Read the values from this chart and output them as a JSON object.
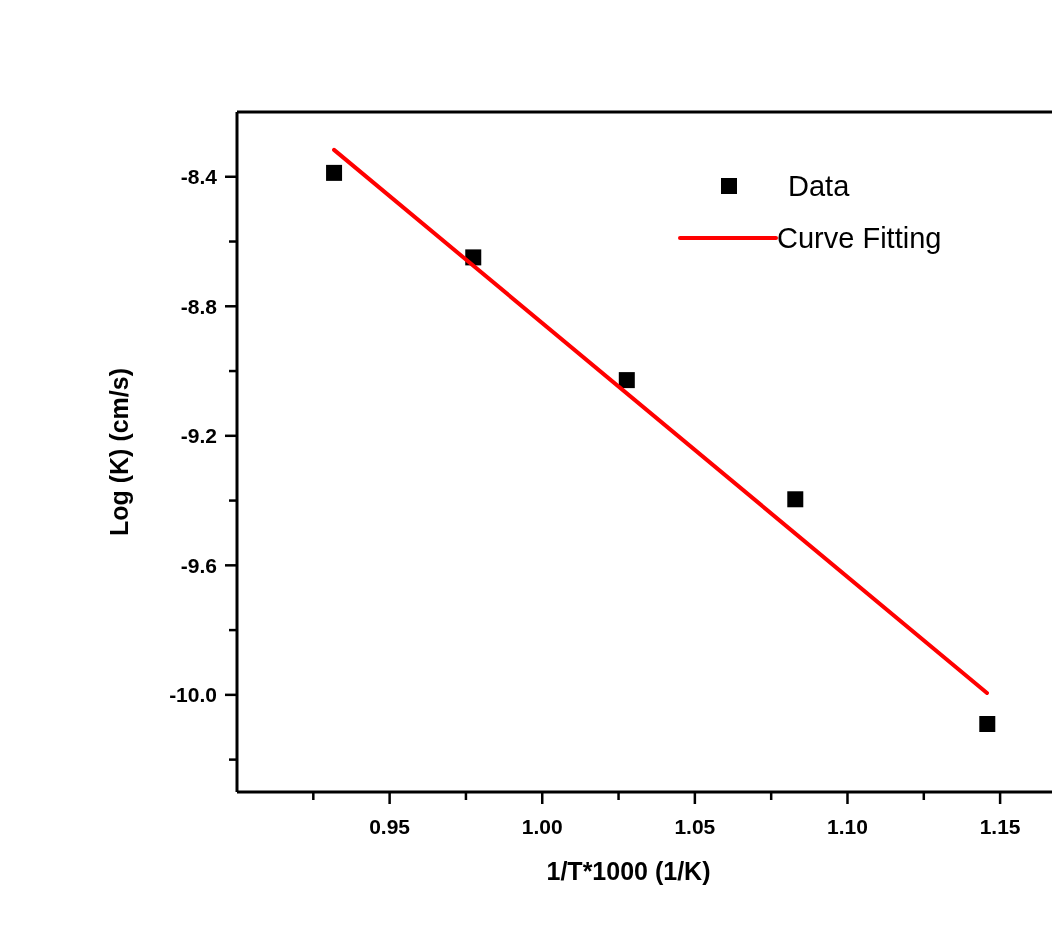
{
  "chart_data": {
    "type": "scatter",
    "xlabel": "1/T*1000 (1/K)",
    "ylabel": "Log (K) (cm/s)",
    "x": [
      0.9318,
      0.9774,
      1.0277,
      1.0829,
      1.1458
    ],
    "series": [
      {
        "name": "Data",
        "color": "#000000",
        "marker": "square",
        "values": [
          -8.388,
          -8.649,
          -9.028,
          -9.396,
          -10.09
        ]
      },
      {
        "name": "Curve Fitting",
        "type": "line",
        "color": "#ff0000",
        "x": [
          0.9318,
          1.1457
        ],
        "values": [
          -8.317,
          -9.994
        ]
      }
    ],
    "xlim": [
      0.9,
      1.167
    ],
    "ylim": [
      -10.3,
      -8.2
    ],
    "xticks": [
      {
        "value": 0.925,
        "label": null
      },
      0.95,
      {
        "value": 0.975,
        "label": null
      },
      {
        "value": 1.0,
        "label": "1.00"
      },
      {
        "value": 1.025,
        "label": null
      },
      1.05,
      {
        "value": 1.075,
        "label": null
      },
      {
        "value": 1.1,
        "label": "1.10"
      },
      {
        "value": 1.125,
        "label": null
      },
      1.15
    ],
    "yticks": [
      {
        "value": -10.2,
        "label": null
      },
      {
        "value": -10.0,
        "label": "-10.0"
      },
      {
        "value": -9.8,
        "label": null
      },
      -9.6,
      {
        "value": -9.4,
        "label": null
      },
      -9.2,
      {
        "value": -9.0,
        "label": null
      },
      -8.8,
      {
        "value": -8.6,
        "label": null
      },
      -8.4
    ],
    "legend": "top right"
  }
}
